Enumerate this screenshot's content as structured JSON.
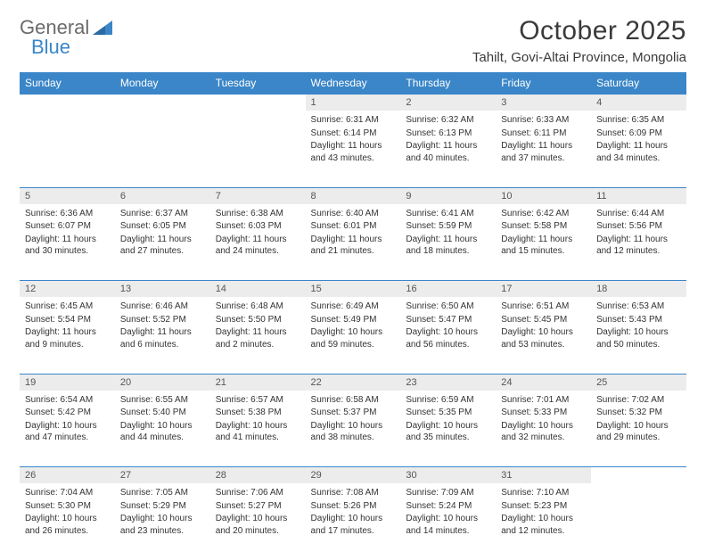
{
  "brand": {
    "part1": "General",
    "part2": "Blue"
  },
  "title": "October 2025",
  "location": "Tahilt, Govi-Altai Province, Mongolia",
  "colors": {
    "header_bg": "#3a86c8",
    "header_fg": "#ffffff",
    "daynum_bg": "#ececec",
    "row_border": "#3a86c8",
    "text": "#333333",
    "logo_gray": "#6b6b6b",
    "logo_blue": "#3a86c8"
  },
  "weekdays": [
    "Sunday",
    "Monday",
    "Tuesday",
    "Wednesday",
    "Thursday",
    "Friday",
    "Saturday"
  ],
  "weeks": [
    [
      null,
      null,
      null,
      {
        "n": "1",
        "sr": "6:31 AM",
        "ss": "6:14 PM",
        "dl": "11 hours and 43 minutes."
      },
      {
        "n": "2",
        "sr": "6:32 AM",
        "ss": "6:13 PM",
        "dl": "11 hours and 40 minutes."
      },
      {
        "n": "3",
        "sr": "6:33 AM",
        "ss": "6:11 PM",
        "dl": "11 hours and 37 minutes."
      },
      {
        "n": "4",
        "sr": "6:35 AM",
        "ss": "6:09 PM",
        "dl": "11 hours and 34 minutes."
      }
    ],
    [
      {
        "n": "5",
        "sr": "6:36 AM",
        "ss": "6:07 PM",
        "dl": "11 hours and 30 minutes."
      },
      {
        "n": "6",
        "sr": "6:37 AM",
        "ss": "6:05 PM",
        "dl": "11 hours and 27 minutes."
      },
      {
        "n": "7",
        "sr": "6:38 AM",
        "ss": "6:03 PM",
        "dl": "11 hours and 24 minutes."
      },
      {
        "n": "8",
        "sr": "6:40 AM",
        "ss": "6:01 PM",
        "dl": "11 hours and 21 minutes."
      },
      {
        "n": "9",
        "sr": "6:41 AM",
        "ss": "5:59 PM",
        "dl": "11 hours and 18 minutes."
      },
      {
        "n": "10",
        "sr": "6:42 AM",
        "ss": "5:58 PM",
        "dl": "11 hours and 15 minutes."
      },
      {
        "n": "11",
        "sr": "6:44 AM",
        "ss": "5:56 PM",
        "dl": "11 hours and 12 minutes."
      }
    ],
    [
      {
        "n": "12",
        "sr": "6:45 AM",
        "ss": "5:54 PM",
        "dl": "11 hours and 9 minutes."
      },
      {
        "n": "13",
        "sr": "6:46 AM",
        "ss": "5:52 PM",
        "dl": "11 hours and 6 minutes."
      },
      {
        "n": "14",
        "sr": "6:48 AM",
        "ss": "5:50 PM",
        "dl": "11 hours and 2 minutes."
      },
      {
        "n": "15",
        "sr": "6:49 AM",
        "ss": "5:49 PM",
        "dl": "10 hours and 59 minutes."
      },
      {
        "n": "16",
        "sr": "6:50 AM",
        "ss": "5:47 PM",
        "dl": "10 hours and 56 minutes."
      },
      {
        "n": "17",
        "sr": "6:51 AM",
        "ss": "5:45 PM",
        "dl": "10 hours and 53 minutes."
      },
      {
        "n": "18",
        "sr": "6:53 AM",
        "ss": "5:43 PM",
        "dl": "10 hours and 50 minutes."
      }
    ],
    [
      {
        "n": "19",
        "sr": "6:54 AM",
        "ss": "5:42 PM",
        "dl": "10 hours and 47 minutes."
      },
      {
        "n": "20",
        "sr": "6:55 AM",
        "ss": "5:40 PM",
        "dl": "10 hours and 44 minutes."
      },
      {
        "n": "21",
        "sr": "6:57 AM",
        "ss": "5:38 PM",
        "dl": "10 hours and 41 minutes."
      },
      {
        "n": "22",
        "sr": "6:58 AM",
        "ss": "5:37 PM",
        "dl": "10 hours and 38 minutes."
      },
      {
        "n": "23",
        "sr": "6:59 AM",
        "ss": "5:35 PM",
        "dl": "10 hours and 35 minutes."
      },
      {
        "n": "24",
        "sr": "7:01 AM",
        "ss": "5:33 PM",
        "dl": "10 hours and 32 minutes."
      },
      {
        "n": "25",
        "sr": "7:02 AM",
        "ss": "5:32 PM",
        "dl": "10 hours and 29 minutes."
      }
    ],
    [
      {
        "n": "26",
        "sr": "7:04 AM",
        "ss": "5:30 PM",
        "dl": "10 hours and 26 minutes."
      },
      {
        "n": "27",
        "sr": "7:05 AM",
        "ss": "5:29 PM",
        "dl": "10 hours and 23 minutes."
      },
      {
        "n": "28",
        "sr": "7:06 AM",
        "ss": "5:27 PM",
        "dl": "10 hours and 20 minutes."
      },
      {
        "n": "29",
        "sr": "7:08 AM",
        "ss": "5:26 PM",
        "dl": "10 hours and 17 minutes."
      },
      {
        "n": "30",
        "sr": "7:09 AM",
        "ss": "5:24 PM",
        "dl": "10 hours and 14 minutes."
      },
      {
        "n": "31",
        "sr": "7:10 AM",
        "ss": "5:23 PM",
        "dl": "10 hours and 12 minutes."
      },
      null
    ]
  ],
  "labels": {
    "sunrise": "Sunrise:",
    "sunset": "Sunset:",
    "daylight": "Daylight:"
  }
}
